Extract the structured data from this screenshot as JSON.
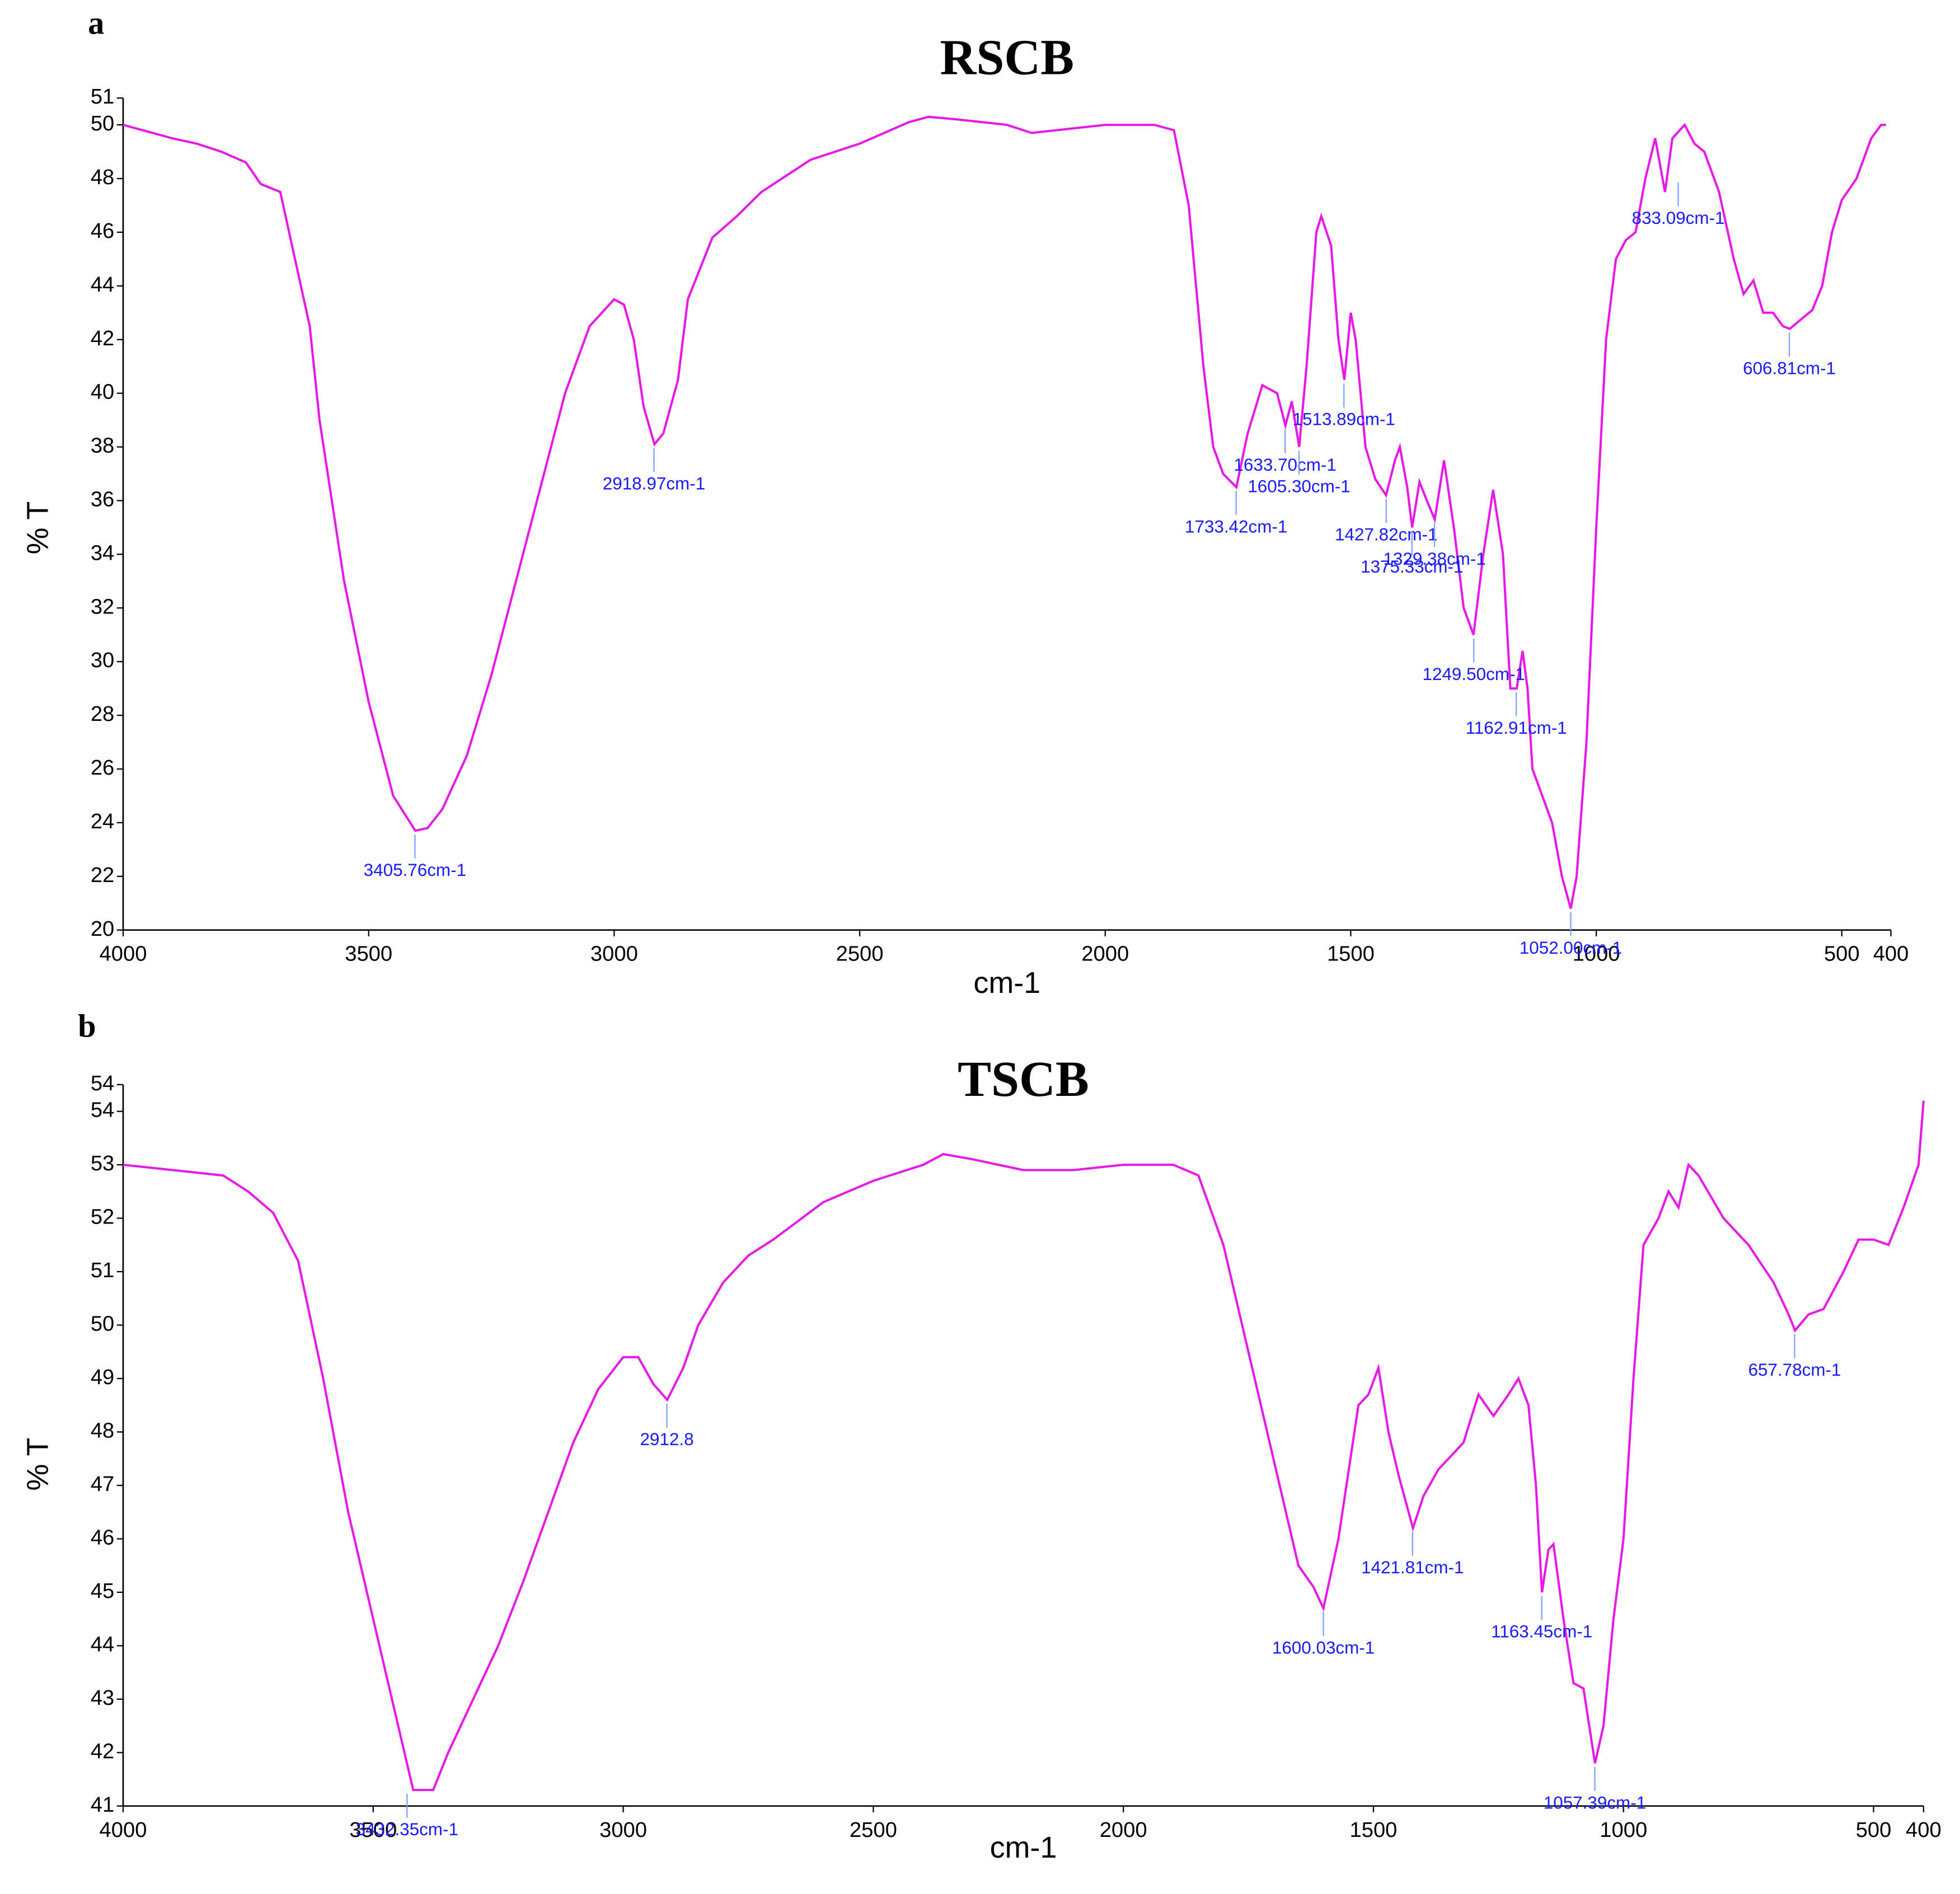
{
  "chart_data": [
    {
      "type": "line",
      "panel": "a",
      "title": "RSCB",
      "xlabel": "cm-1",
      "ylabel": "% T",
      "xlim": [
        4000,
        400
      ],
      "xticks": [
        4000,
        3500,
        3000,
        2500,
        2000,
        1500,
        1000,
        500,
        400
      ],
      "ylim": [
        20,
        51
      ],
      "yticks": [
        20,
        22,
        24,
        26,
        28,
        30,
        32,
        34,
        36,
        38,
        40,
        42,
        44,
        46,
        48,
        50,
        51
      ],
      "series": [
        {
          "color": "#e619e6",
          "x": [
            4000,
            3900,
            3850,
            3800,
            3750,
            3720,
            3680,
            3650,
            3620,
            3600,
            3550,
            3500,
            3450,
            3405,
            3380,
            3350,
            3300,
            3250,
            3200,
            3150,
            3100,
            3050,
            3000,
            2980,
            2960,
            2940,
            2918,
            2900,
            2870,
            2850,
            2800,
            2750,
            2700,
            2600,
            2500,
            2400,
            2360,
            2300,
            2200,
            2150,
            2100,
            2000,
            1900,
            1860,
            1830,
            1800,
            1780,
            1760,
            1733,
            1710,
            1680,
            1650,
            1633,
            1620,
            1605,
            1590,
            1570,
            1560,
            1540,
            1525,
            1513,
            1500,
            1490,
            1470,
            1450,
            1428,
            1410,
            1400,
            1385,
            1375,
            1360,
            1345,
            1329,
            1310,
            1290,
            1270,
            1250,
            1230,
            1210,
            1190,
            1175,
            1162,
            1150,
            1140,
            1130,
            1110,
            1090,
            1070,
            1052,
            1040,
            1020,
            1000,
            980,
            960,
            940,
            920,
            900,
            880,
            860,
            845,
            820,
            800,
            780,
            750,
            720,
            700,
            680,
            660,
            640,
            620,
            606,
            580,
            560,
            540,
            520,
            500,
            470,
            440,
            420,
            410
          ],
          "values": [
            50,
            49.5,
            49.3,
            49,
            48.6,
            47.8,
            47.5,
            45,
            42.5,
            39,
            33,
            28.5,
            25,
            23.7,
            23.8,
            24.5,
            26.5,
            29.5,
            33,
            36.5,
            40,
            42.5,
            43.5,
            43.3,
            42,
            39.5,
            38.1,
            38.5,
            40.5,
            43.5,
            45.8,
            46.6,
            47.5,
            48.7,
            49.3,
            50.1,
            50.3,
            50.2,
            50,
            49.7,
            49.8,
            50,
            50,
            49.8,
            47,
            41,
            38,
            37,
            36.5,
            38.5,
            40.3,
            40,
            38.8,
            39.7,
            38,
            41,
            46,
            46.6,
            45.5,
            42,
            40.5,
            43,
            42,
            38,
            36.8,
            36.2,
            37.5,
            38,
            36.5,
            35,
            36.7,
            36,
            35.3,
            37.5,
            35,
            32,
            31,
            34,
            36.4,
            34,
            29,
            29,
            30.4,
            29,
            26,
            25,
            24,
            22,
            20.8,
            22,
            27,
            35,
            42,
            45,
            45.7,
            46,
            48,
            49.5,
            47.5,
            49.5,
            50,
            49.3,
            49,
            47.5,
            45,
            43.7,
            44.2,
            43,
            43,
            42.5,
            42.4,
            42.8,
            43.1,
            44,
            46,
            47.2,
            48,
            49.5,
            50,
            50
          ]
        }
      ],
      "annotations": [
        {
          "text": "3405.76cm-1",
          "x": 3405.76,
          "y": 23.7
        },
        {
          "text": "2918.97cm-1",
          "x": 2918.97,
          "y": 38.1
        },
        {
          "text": "1733.42cm-1",
          "x": 1733.42,
          "y": 36.5
        },
        {
          "text": "1633.70cm-1",
          "x": 1633.7,
          "y": 38.8
        },
        {
          "text": "1605.30cm-1",
          "x": 1605.3,
          "y": 38
        },
        {
          "text": "1513.89cm-1",
          "x": 1513.89,
          "y": 40.5
        },
        {
          "text": "1427.82cm-1",
          "x": 1427.82,
          "y": 36.2
        },
        {
          "text": "1375.33cm-1",
          "x": 1375.33,
          "y": 35
        },
        {
          "text": "1329.38cm-1",
          "x": 1329.38,
          "y": 35.3
        },
        {
          "text": "1249.50cm-1",
          "x": 1249.5,
          "y": 31
        },
        {
          "text": "1162.91cm-1",
          "x": 1162.91,
          "y": 29
        },
        {
          "text": "1052.00cm-1",
          "x": 1052.0,
          "y": 20.8
        },
        {
          "text": "833.09cm-1",
          "x": 833.09,
          "y": 48
        },
        {
          "text": "606.81cm-1",
          "x": 606.81,
          "y": 42.4
        }
      ]
    },
    {
      "type": "line",
      "panel": "b",
      "title": "TSCB",
      "xlabel": "cm-1",
      "ylabel": "% T",
      "xlim": [
        4000,
        400
      ],
      "xticks": [
        4000,
        3500,
        3000,
        2500,
        2000,
        1500,
        1000,
        500,
        400
      ],
      "ylim": [
        41,
        54.5
      ],
      "yticks": [
        41,
        42,
        43,
        44,
        45,
        46,
        47,
        48,
        49,
        50,
        51,
        52,
        53,
        54,
        {
          "value": 54.5,
          "label": "54"
        }
      ],
      "series": [
        {
          "color": "#e619e6",
          "x": [
            4000,
            3900,
            3800,
            3750,
            3700,
            3650,
            3600,
            3550,
            3500,
            3450,
            3420,
            3380,
            3350,
            3300,
            3250,
            3200,
            3150,
            3100,
            3050,
            3000,
            2970,
            2940,
            2912,
            2880,
            2850,
            2800,
            2750,
            2700,
            2600,
            2500,
            2400,
            2360,
            2300,
            2200,
            2100,
            2000,
            1900,
            1850,
            1800,
            1750,
            1700,
            1650,
            1620,
            1600,
            1570,
            1530,
            1510,
            1490,
            1470,
            1450,
            1421,
            1400,
            1370,
            1350,
            1320,
            1290,
            1260,
            1230,
            1210,
            1190,
            1175,
            1163,
            1150,
            1140,
            1120,
            1100,
            1080,
            1057,
            1040,
            1020,
            1000,
            980,
            960,
            930,
            910,
            890,
            870,
            850,
            800,
            750,
            700,
            670,
            657,
            630,
            600,
            560,
            530,
            500,
            470,
            440,
            410,
            400
          ],
          "values": [
            53,
            52.9,
            52.8,
            52.5,
            52.1,
            51.2,
            49,
            46.5,
            44.5,
            42.5,
            41.3,
            41.3,
            42,
            43,
            44,
            45.2,
            46.5,
            47.8,
            48.8,
            49.4,
            49.4,
            48.9,
            48.6,
            49.2,
            50,
            50.8,
            51.3,
            51.6,
            52.3,
            52.7,
            53,
            53.2,
            53.1,
            52.9,
            52.9,
            53,
            53,
            52.8,
            51.5,
            49.5,
            47.5,
            45.5,
            45.1,
            44.7,
            46,
            48.5,
            48.7,
            49.2,
            48,
            47.2,
            46.2,
            46.8,
            47.3,
            47.5,
            47.8,
            48.7,
            48.3,
            48.7,
            49,
            48.5,
            47,
            45,
            45.8,
            45.9,
            44.5,
            43.3,
            43.2,
            41.8,
            42.5,
            44.5,
            46,
            49,
            51.5,
            52,
            52.5,
            52.2,
            53,
            52.8,
            52,
            51.5,
            50.8,
            50.2,
            49.9,
            50.2,
            50.3,
            51,
            51.6,
            51.6,
            51.5,
            52.2,
            53,
            54.2
          ]
        }
      ],
      "annotations": [
        {
          "text": "3432.35cm-1",
          "x": 3432.35,
          "y": 41.3
        },
        {
          "text": "2912.8",
          "x": 2912.8,
          "y": 48.6
        },
        {
          "text": "1600.03cm-1",
          "x": 1600.03,
          "y": 44.7
        },
        {
          "text": "1421.81cm-1",
          "x": 1421.81,
          "y": 46.2
        },
        {
          "text": "1163.45cm-1",
          "x": 1163.45,
          "y": 45
        },
        {
          "text": "1057.39cm-1",
          "x": 1057.39,
          "y": 41.8
        },
        {
          "text": "657.78cm-1",
          "x": 657.78,
          "y": 49.9
        }
      ]
    }
  ]
}
